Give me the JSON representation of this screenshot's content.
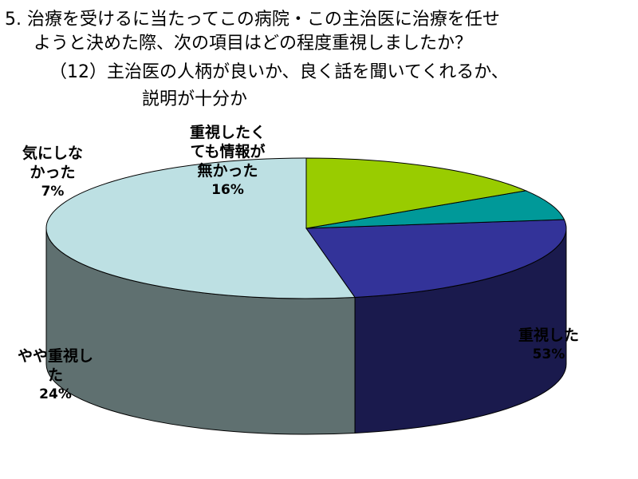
{
  "title": {
    "line1": "5. 治療を受けるに当たってこの病院・この主治医に治療を任せ",
    "line2": "ようと決めた際、次の項目はどの程度重視しましたか？",
    "line3": "（12）主治医の人柄が良いか、良く話を聞いてくれるか、",
    "line4": "説明が十分か"
  },
  "chart_data": {
    "type": "pie",
    "title": "5. 治療を受けるに当たってこの病院・この主治医に治療を任せようと決めた際、次の項目はどの程度重視しましたか？（12）主治医の人柄が良いか、良く話を聞いてくれるか、説明が十分か",
    "categories": [
      "重視した",
      "やや重視した",
      "気にしなかった",
      "重視したくても情報が無かった"
    ],
    "values": [
      53,
      24,
      7,
      16
    ],
    "labels": [
      {
        "lines": [
          "重視した"
        ],
        "pct": "53%"
      },
      {
        "lines": [
          "やや重視し",
          "た"
        ],
        "pct": "24%"
      },
      {
        "lines": [
          "気にしな",
          "かった"
        ],
        "pct": "7%"
      },
      {
        "lines": [
          "重視したく",
          "ても情報が",
          "無かった"
        ],
        "pct": "16%"
      }
    ],
    "colors": {
      "top": [
        "#bde0e3",
        "#333399",
        "#009999",
        "#99cc00"
      ],
      "side": [
        "#5f7070",
        "#1a1a4d",
        "#004d4d",
        "#4d6600"
      ]
    },
    "style": "3d-pie",
    "legend": "none"
  }
}
